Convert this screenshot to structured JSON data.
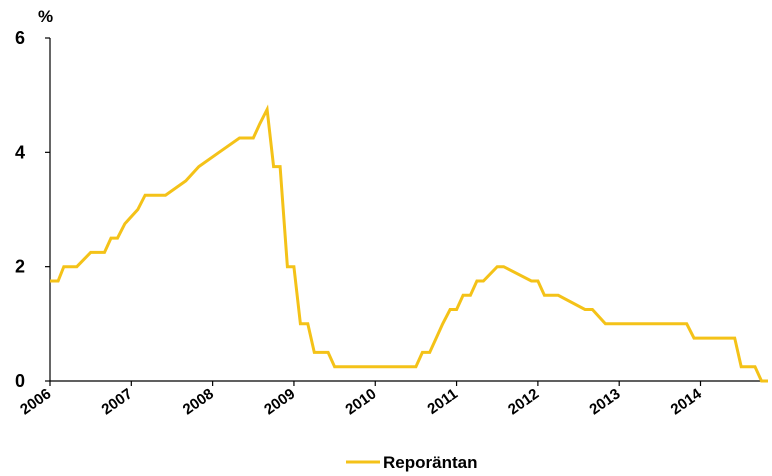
{
  "chart_data": {
    "type": "line",
    "title": "",
    "xlabel": "",
    "ylabel": "%",
    "xlim": [
      2006.0,
      2014.83
    ],
    "ylim": [
      0,
      6
    ],
    "yticks": [
      "0",
      "2",
      "4",
      "6"
    ],
    "ytick_values": [
      0,
      2,
      4,
      6
    ],
    "xticks": [
      "2006",
      "2007",
      "2008",
      "2009",
      "2010",
      "2011",
      "2012",
      "2013",
      "2014"
    ],
    "xtick_values": [
      2006,
      2007,
      2008,
      2009,
      2010,
      2011,
      2012,
      2013,
      2014
    ],
    "grid": false,
    "legend_position": "bottom-center",
    "series": [
      {
        "name": "Reporäntan",
        "color": "#F4C218",
        "x": [
          2006.0,
          2006.08,
          2006.1,
          2006.17,
          2006.25,
          2006.33,
          2006.5,
          2006.67,
          2006.75,
          2006.83,
          2006.92,
          2007.08,
          2007.17,
          2007.42,
          2007.67,
          2007.83,
          2008.08,
          2008.33,
          2008.5,
          2008.58,
          2008.67,
          2008.75,
          2008.83,
          2008.92,
          2009.0,
          2009.08,
          2009.17,
          2009.25,
          2009.42,
          2009.5,
          2010.5,
          2010.58,
          2010.67,
          2010.75,
          2010.83,
          2010.92,
          2011.0,
          2011.08,
          2011.17,
          2011.25,
          2011.33,
          2011.5,
          2011.58,
          2011.92,
          2012.0,
          2012.08,
          2012.17,
          2012.25,
          2012.58,
          2012.67,
          2012.83,
          2012.92,
          2013.0,
          2013.83,
          2013.92,
          2014.42,
          2014.5,
          2014.67,
          2014.75,
          2014.83
        ],
        "y": [
          1.75,
          1.75,
          1.75,
          2.0,
          2.0,
          2.0,
          2.25,
          2.25,
          2.5,
          2.5,
          2.75,
          3.0,
          3.25,
          3.25,
          3.5,
          3.75,
          4.0,
          4.25,
          4.25,
          4.5,
          4.75,
          3.75,
          3.75,
          2.0,
          2.0,
          1.0,
          1.0,
          0.5,
          0.5,
          0.25,
          0.25,
          0.5,
          0.5,
          0.75,
          1.0,
          1.25,
          1.25,
          1.5,
          1.5,
          1.75,
          1.75,
          2.0,
          2.0,
          1.75,
          1.75,
          1.5,
          1.5,
          1.5,
          1.25,
          1.25,
          1.0,
          1.0,
          1.0,
          1.0,
          0.75,
          0.75,
          0.25,
          0.25,
          0.0,
          0.0
        ]
      }
    ]
  }
}
